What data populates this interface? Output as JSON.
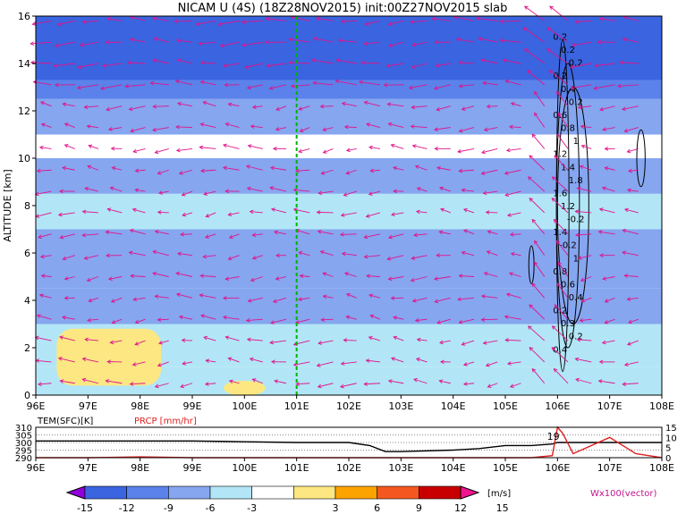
{
  "title": "NICAM U (4S) (18Z28NOV2015) init:00Z27NOV2015 slab",
  "colors": {
    "level_fill": [
      "#8f00dc",
      "#3a64e0",
      "#5a82ea",
      "#86a6f0",
      "#b2e6f6",
      "#ffffff",
      "#fce782",
      "#fca300",
      "#f45820",
      "#c80000",
      "#f01490"
    ],
    "vector": "#e0148c",
    "section_line": "#00b400",
    "temperature_line": "#000000",
    "precipitation_line": "#e02020",
    "contour": "#000000"
  },
  "chart_data": [
    {
      "type": "heatmap",
      "variable": "U",
      "xlabel": "",
      "ylabel": "ALTITUDE [km]",
      "x_ticks": [
        "96E",
        "97E",
        "98E",
        "99E",
        "100E",
        "101E",
        "102E",
        "103E",
        "104E",
        "105E",
        "106E",
        "107E",
        "108E"
      ],
      "y_ticks": [
        "0",
        "2",
        "4",
        "6",
        "8",
        "10",
        "12",
        "14",
        "16"
      ],
      "xlim": [
        96,
        108
      ],
      "ylim": [
        0,
        16
      ],
      "section_longitude": 101,
      "colorbar": {
        "ticks": [
          "-15",
          "-12",
          "-9",
          "-6",
          "-3",
          "3",
          "6",
          "9",
          "12",
          "15"
        ],
        "unit": "[m/s]",
        "levels": [
          -15,
          -12,
          -9,
          -6,
          -3,
          3,
          6,
          9,
          12,
          15
        ]
      },
      "bands": [
        {
          "z": [
            0,
            1.2
          ],
          "u": -4
        },
        {
          "z": [
            1.2,
            3
          ],
          "u": -5
        },
        {
          "z": [
            3,
            4.5
          ],
          "u": -7
        },
        {
          "z": [
            4.5,
            7
          ],
          "u": -8
        },
        {
          "z": [
            7,
            8.5
          ],
          "u": -6
        },
        {
          "z": [
            8.5,
            10
          ],
          "u": -9
        },
        {
          "z": [
            10,
            11
          ],
          "u": -3
        },
        {
          "z": [
            11,
            12.5
          ],
          "u": -8
        },
        {
          "z": [
            12.5,
            13.3
          ],
          "u": -11
        },
        {
          "z": [
            13.3,
            16
          ],
          "u": -15
        }
      ],
      "positive_patches": [
        {
          "x": [
            96.4,
            98.4
          ],
          "z": [
            0.4,
            2.8
          ],
          "u": 4
        },
        {
          "x": [
            99.6,
            100.4
          ],
          "z": [
            0,
            0.6
          ],
          "u": 4
        }
      ],
      "vector_label": "Wx100(vector)",
      "contour_labels": [
        "0.2",
        "0.2",
        "0.2",
        "0.2",
        "0.4",
        "0.2",
        "0.6",
        "0.8",
        "1",
        "1.2",
        "1.4",
        "1.8",
        "1.6",
        "1.2",
        "-0.2",
        "1.4",
        "-0.2",
        "1",
        "0.8",
        "0.6",
        "0.4",
        "0.2",
        "0.3",
        "0.2",
        "0.4"
      ]
    },
    {
      "type": "line",
      "x": [
        96,
        97,
        98,
        99,
        100,
        101,
        102,
        102.4,
        102.7,
        103,
        104,
        104.5,
        105,
        105.5,
        105.9,
        106,
        106.1,
        106.3,
        107,
        107.5,
        108
      ],
      "series": [
        {
          "name": "TEM(SFC)[K]",
          "values": [
            301,
            301,
            301,
            301,
            300.5,
            300,
            300,
            298,
            294,
            294,
            295,
            296,
            298,
            298,
            299,
            300,
            300,
            300,
            300,
            300,
            300
          ]
        },
        {
          "name": "PRCP [mm/hr]",
          "values": [
            0,
            0,
            0.4,
            0,
            0,
            0,
            0,
            0,
            0,
            0,
            0,
            0,
            0,
            0,
            1,
            15,
            12,
            2,
            10,
            2,
            0
          ]
        }
      ],
      "left_ticks": [
        "310",
        "305",
        "300",
        "295",
        "290"
      ],
      "right_ticks": [
        "15",
        "10",
        "5",
        "0"
      ],
      "x_ticks": [
        "96E",
        "97E",
        "98E",
        "99E",
        "100E",
        "101E",
        "102E",
        "103E",
        "104E",
        "105E",
        "106E",
        "107E",
        "108E"
      ],
      "ylim_left": [
        290,
        310
      ],
      "ylim_right": [
        0,
        15
      ],
      "annotation": "19"
    }
  ]
}
